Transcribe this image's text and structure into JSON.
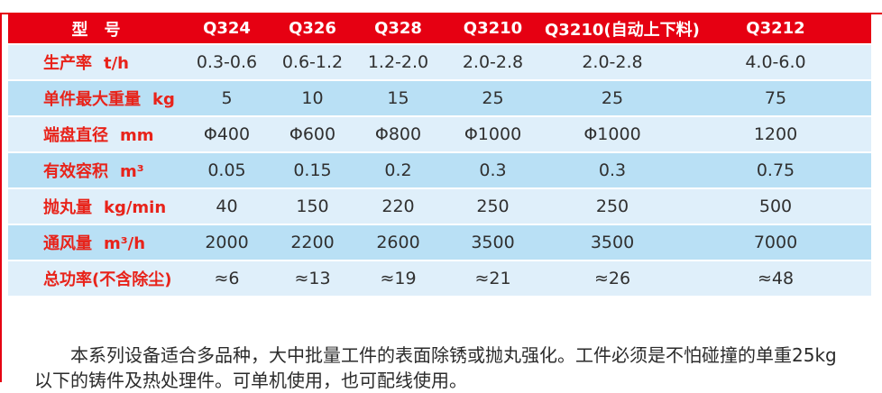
{
  "accent_color": "#e60012",
  "table": {
    "header": {
      "label": "型　号",
      "models": [
        "Q324",
        "Q326",
        "Q328",
        "Q3210",
        "Q3210(自动上下料)",
        "Q3212"
      ]
    },
    "rows": [
      {
        "label": "生产率",
        "unit": "t/h",
        "values": [
          "0.3-0.6",
          "0.6-1.2",
          "1.2-2.0",
          "2.0-2.8",
          "2.0-2.8",
          "4.0-6.0"
        ]
      },
      {
        "label": "单件最大重量",
        "unit": "kg",
        "values": [
          "5",
          "10",
          "15",
          "25",
          "25",
          "75"
        ]
      },
      {
        "label": "端盘直径",
        "unit": "mm",
        "values": [
          "Φ400",
          "Φ600",
          "Φ800",
          "Φ1000",
          "Φ1000",
          "1200"
        ]
      },
      {
        "label": "有效容积",
        "unit": "m³",
        "values": [
          "0.05",
          "0.15",
          "0.2",
          "0.3",
          "0.3",
          "0.75"
        ]
      },
      {
        "label": "抛丸量",
        "unit": "kg/min",
        "values": [
          "40",
          "150",
          "220",
          "250",
          "250",
          "500"
        ]
      },
      {
        "label": "通风量",
        "unit": "m³/h",
        "values": [
          "2000",
          "2200",
          "2600",
          "3500",
          "3500",
          "7000"
        ]
      },
      {
        "label": "总功率(不含除尘)",
        "unit": "",
        "values": [
          "≈6",
          "≈13",
          "≈19",
          "≈21",
          "≈26",
          "≈48"
        ]
      }
    ]
  },
  "description": "本系列设备适合多品种，大中批量工件的表面除锈或抛丸强化。工件必须是不怕碰撞的单重25kg以下的铸件及热处理件。可单机使用，也可配线使用。"
}
